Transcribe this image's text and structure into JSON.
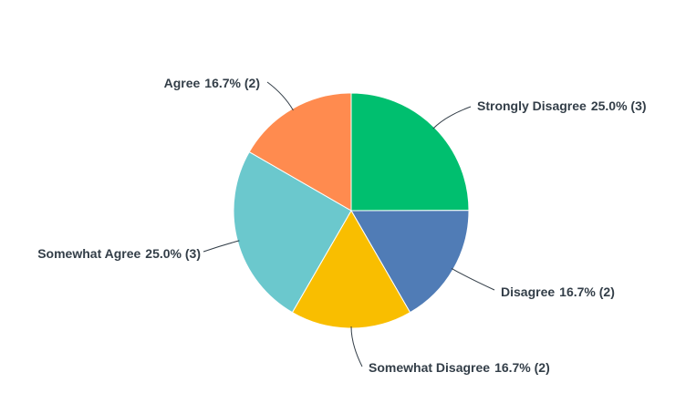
{
  "chart_data": {
    "type": "pie",
    "categories": [
      "Strongly Disagree",
      "Disagree",
      "Somewhat Disagree",
      "Somewhat Agree",
      "Agree"
    ],
    "values": [
      25.0,
      16.7,
      16.7,
      25.0,
      16.7
    ],
    "value_labels": [
      "25.0% (3)",
      "16.7% (2)",
      "16.7% (2)",
      "25.0% (3)",
      "16.7% (2)"
    ],
    "colors": [
      "#00bf6f",
      "#507cb6",
      "#f9be00",
      "#6bc8cd",
      "#ff8b4f"
    ]
  }
}
